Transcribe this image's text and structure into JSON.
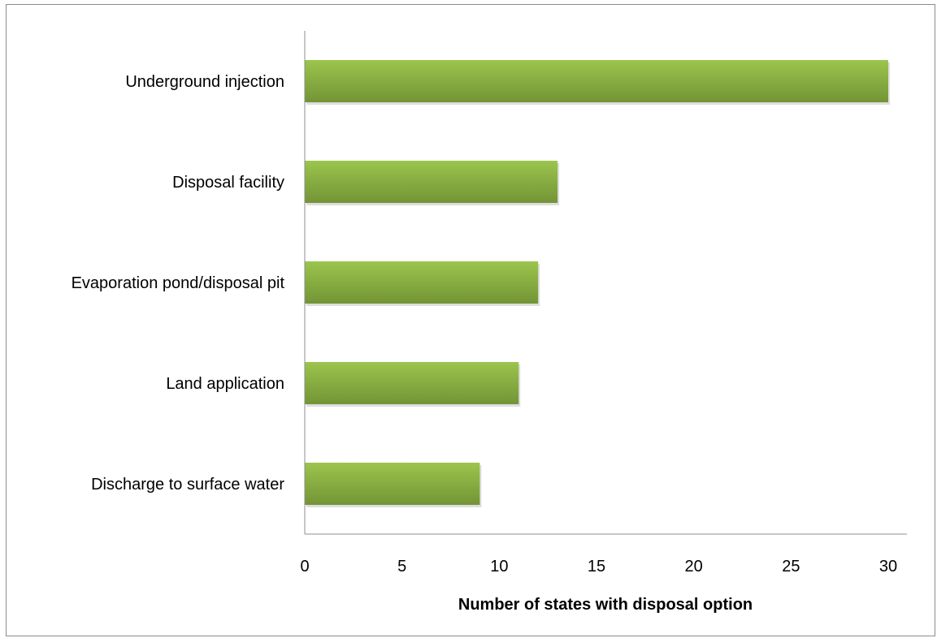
{
  "chart_data": {
    "type": "bar",
    "orientation": "horizontal",
    "categories": [
      "Underground injection",
      "Disposal facility",
      "Evaporation pond/disposal pit",
      "Land application",
      "Discharge to surface water"
    ],
    "values": [
      30,
      13,
      12,
      11,
      9
    ],
    "title": "",
    "xlabel": "Number of states with disposal option",
    "ylabel": "",
    "xlim": [
      0,
      30
    ],
    "xticks": [
      "0",
      "5",
      "10",
      "15",
      "20",
      "25",
      "30"
    ],
    "grid": false,
    "legend": "none",
    "colors": {
      "bar_light": "#9bc54d",
      "bar_dark": "#739436",
      "axis": "#8c8c8c"
    }
  }
}
